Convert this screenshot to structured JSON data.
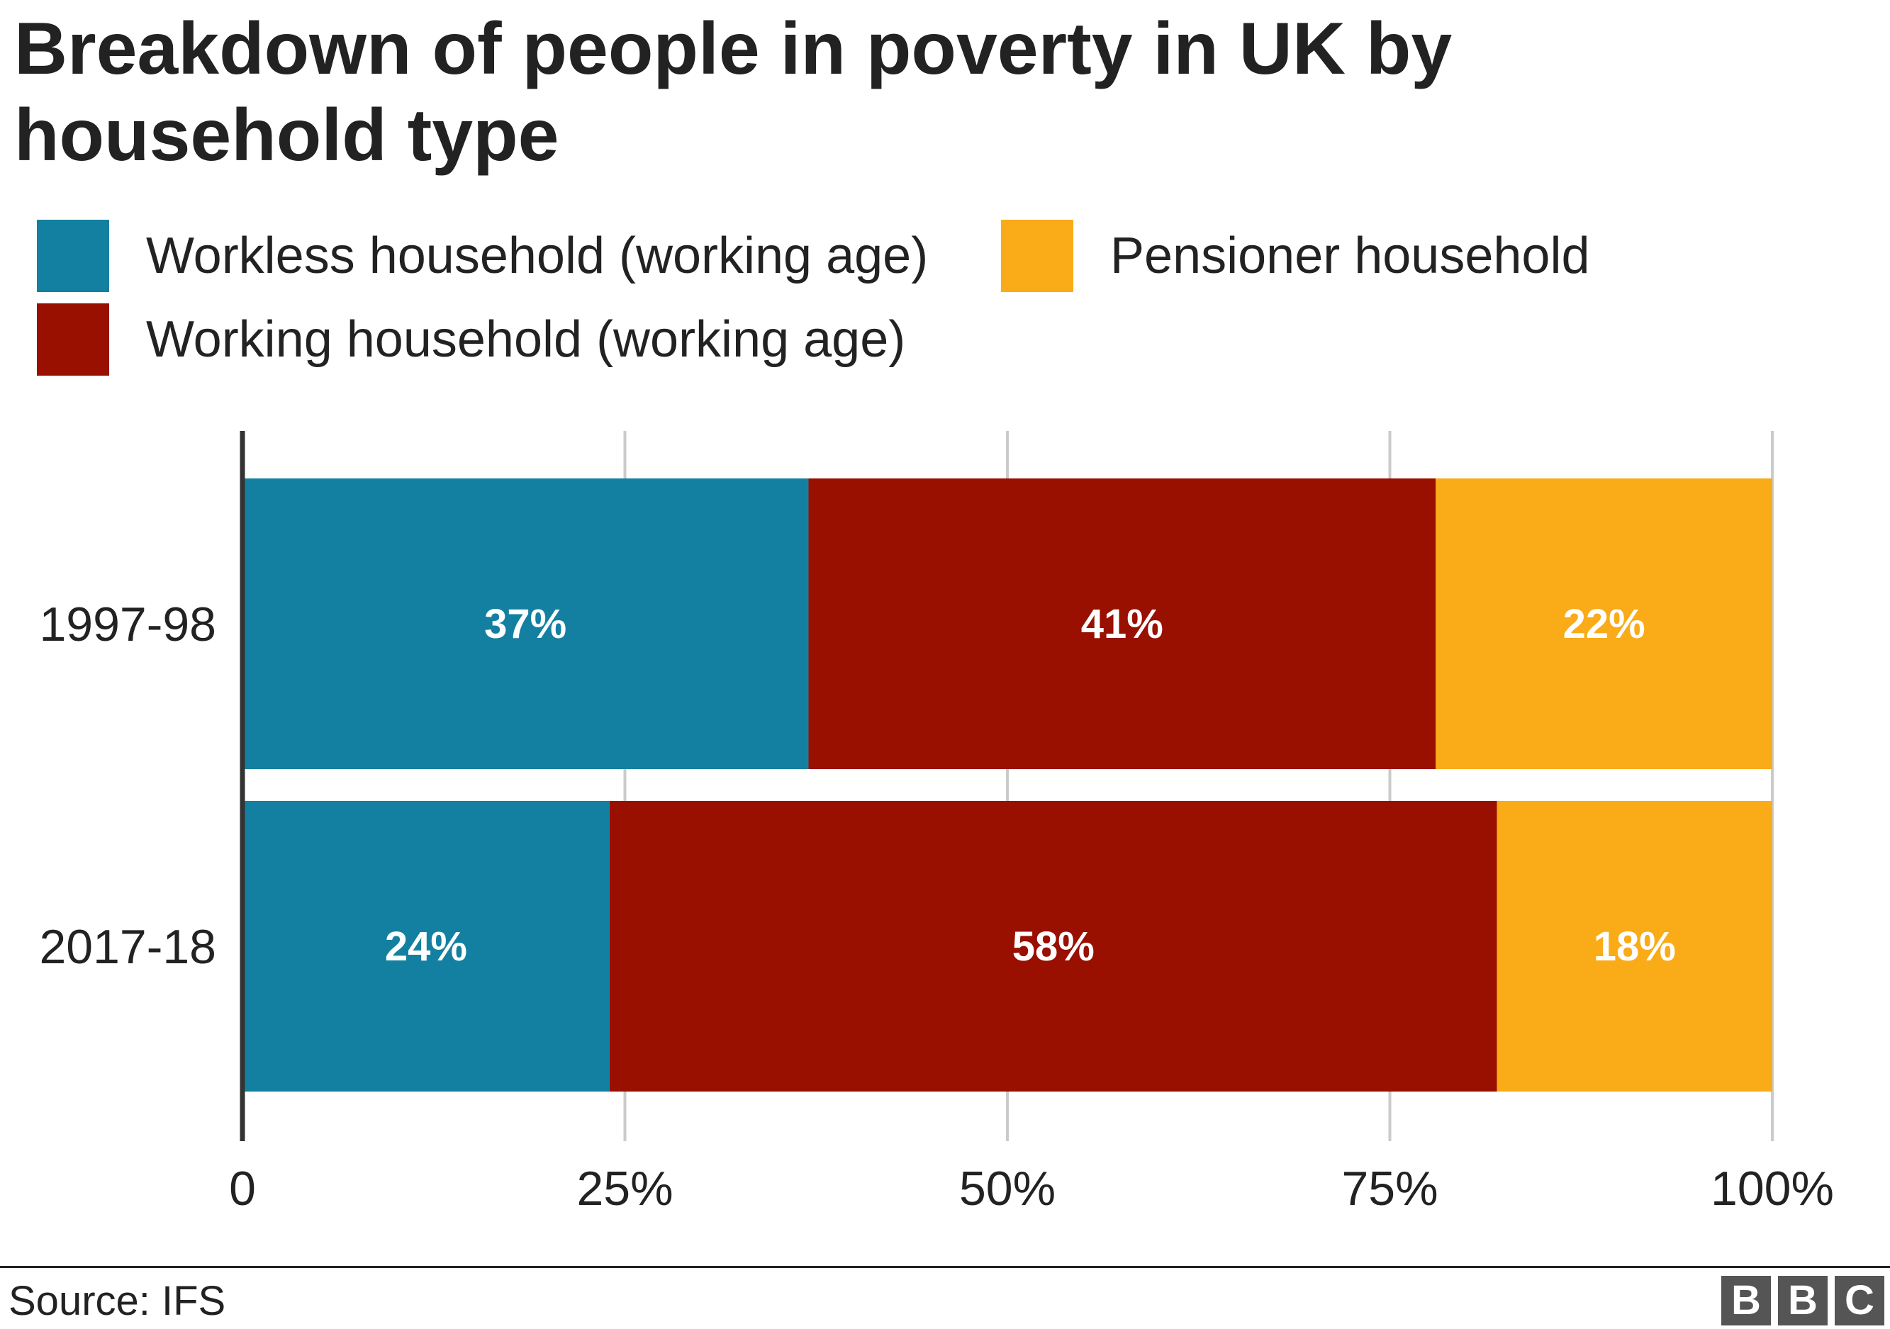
{
  "chart_data": {
    "type": "bar",
    "orientation": "horizontal",
    "stacked": true,
    "title": "Breakdown of people in poverty in UK by household type",
    "categories": [
      "1997-98",
      "2017-18"
    ],
    "series": [
      {
        "name": "Workless household (working age)",
        "color": "#1380A1",
        "values": [
          37,
          24
        ],
        "labels": [
          "37%",
          "24%"
        ]
      },
      {
        "name": "Working household (working age)",
        "color": "#990F00",
        "values": [
          41,
          58
        ],
        "labels": [
          "41%",
          "58%"
        ]
      },
      {
        "name": "Pensioner household",
        "color": "#FAAB18",
        "values": [
          22,
          18
        ],
        "labels": [
          "22%",
          "18%"
        ]
      }
    ],
    "xlim": [
      0,
      100
    ],
    "xticks": [
      0,
      25,
      50,
      75,
      100
    ],
    "xtick_labels": [
      "0",
      "25%",
      "50%",
      "75%",
      "100%"
    ],
    "grid": true,
    "legend_position": "top",
    "source": "Source: IFS",
    "logo_letters": [
      "B",
      "B",
      "C"
    ]
  }
}
